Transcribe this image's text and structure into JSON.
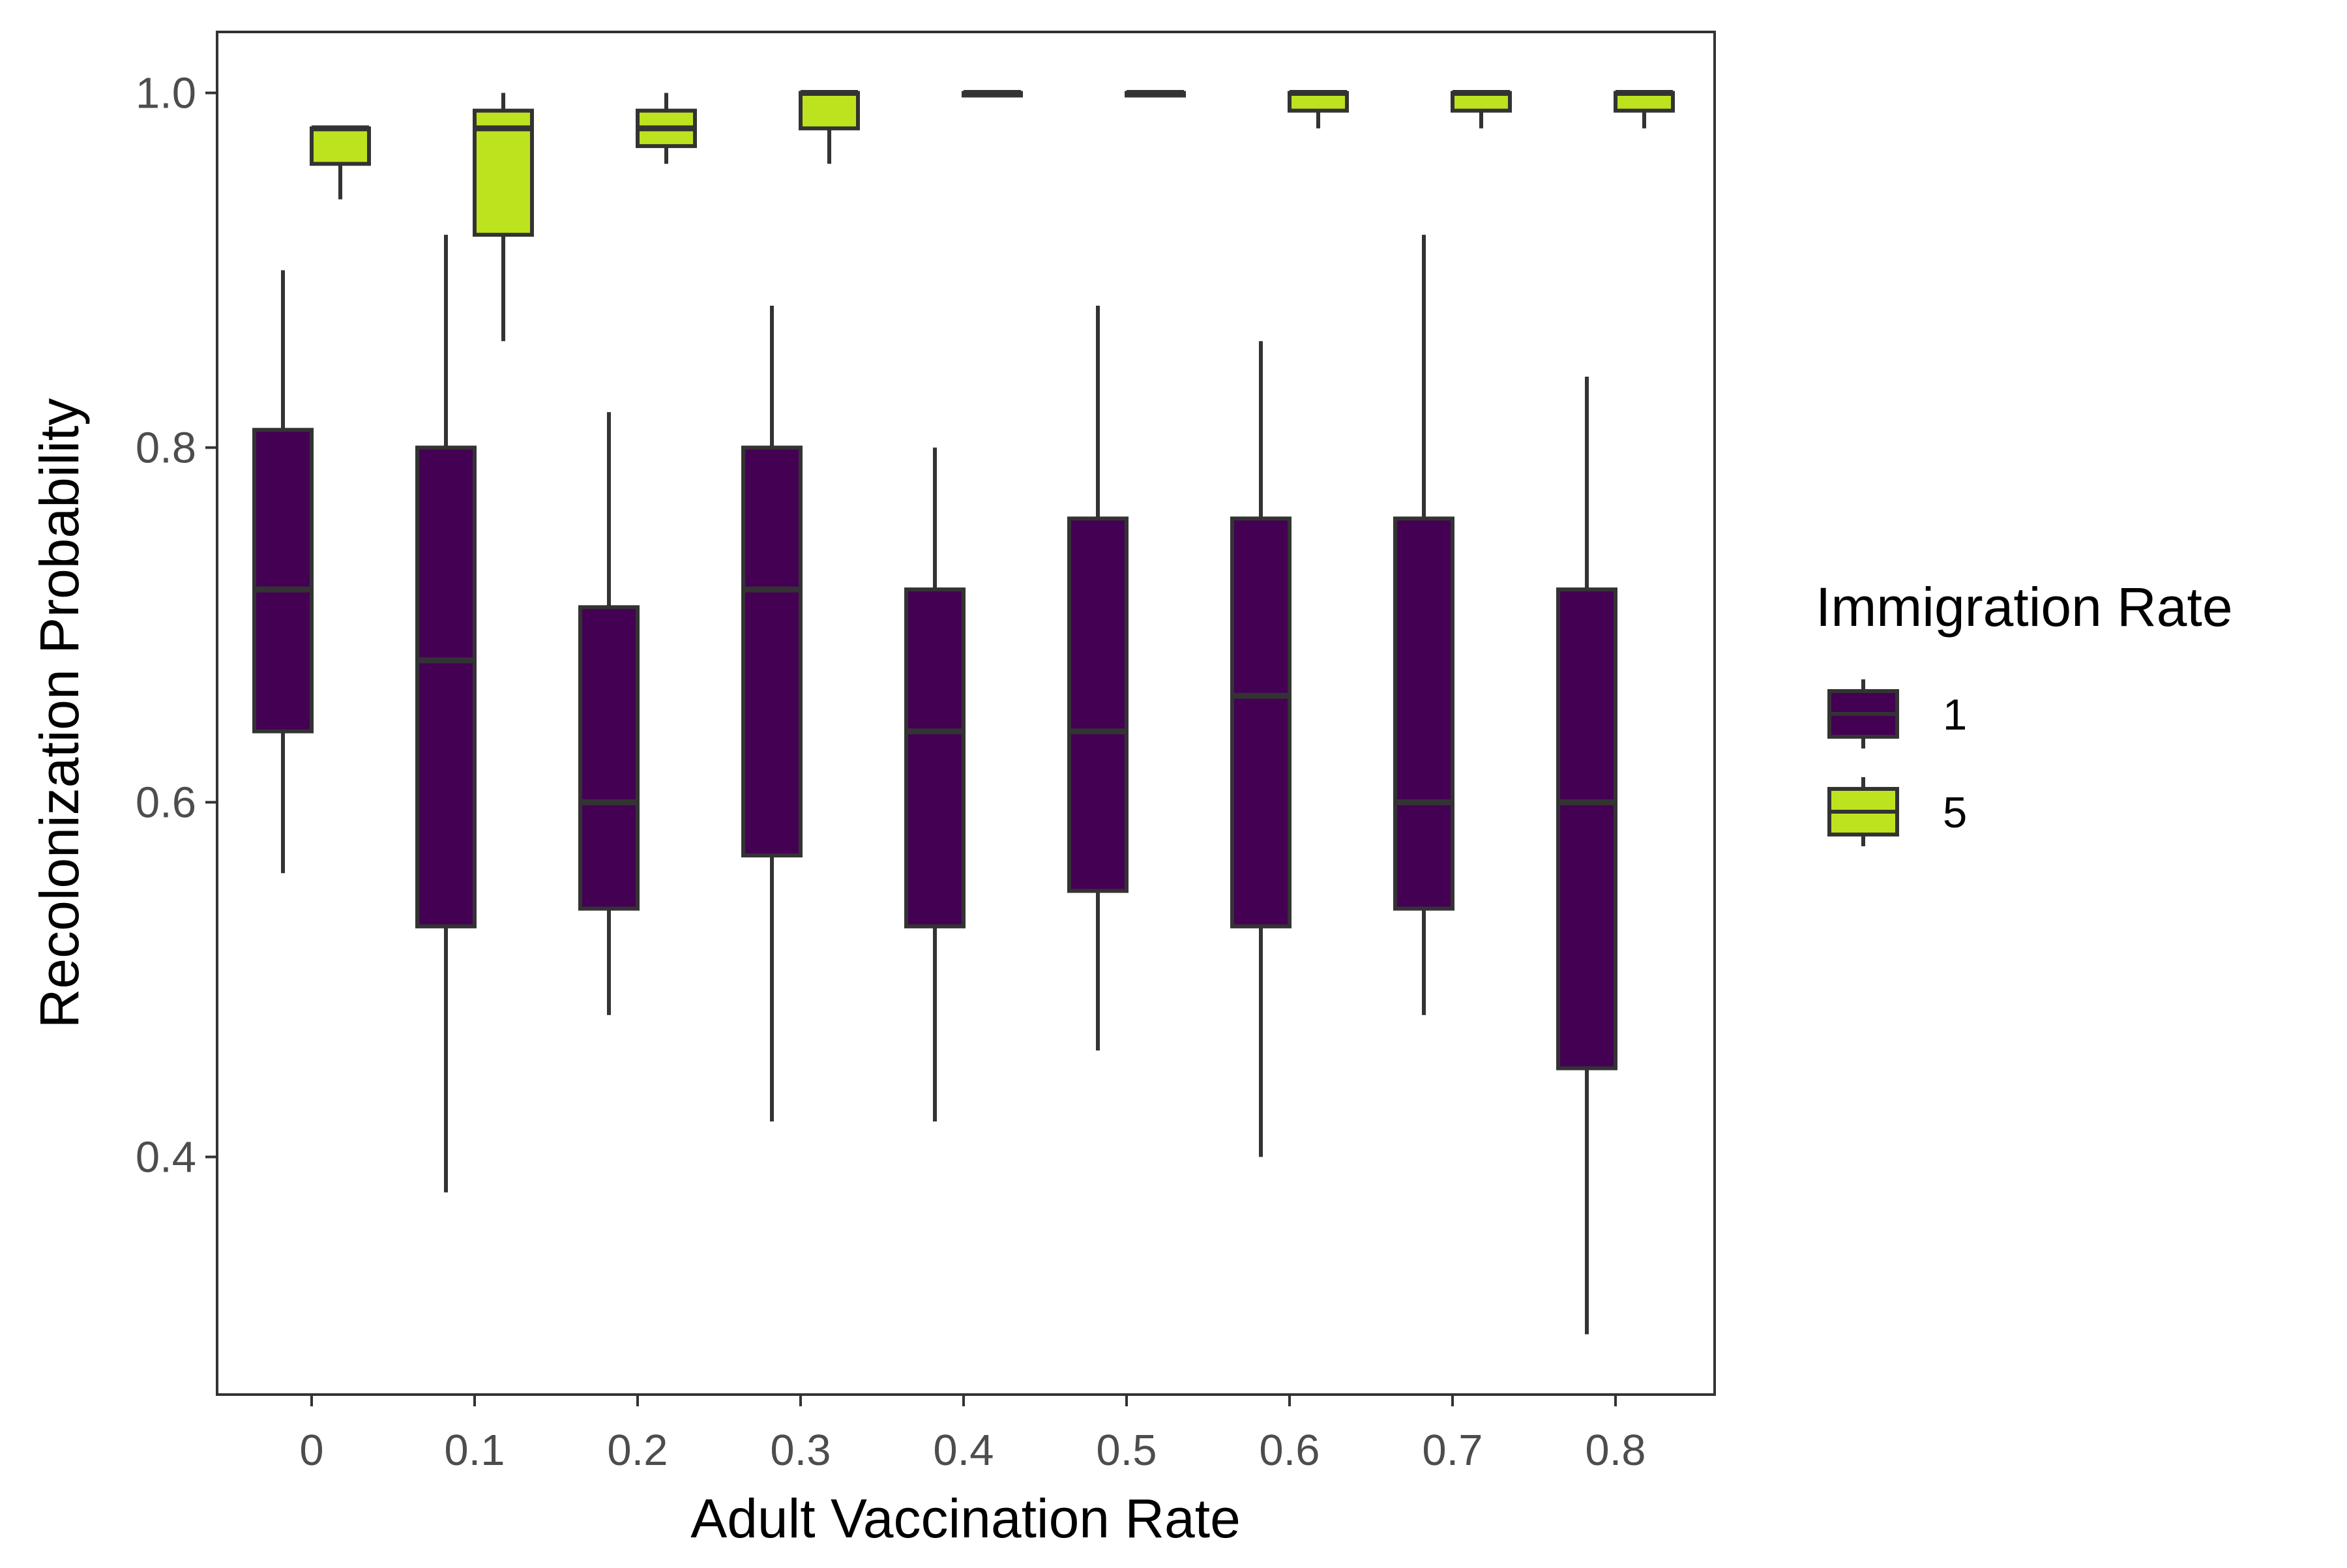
{
  "chart_data": {
    "type": "boxplot",
    "title": "",
    "xlabel": "Adult Vaccination Rate",
    "ylabel": "Recolonization Probability",
    "ylim": [
      0.27,
      1.035
    ],
    "yticks": [
      0.4,
      0.6,
      0.8,
      1.0
    ],
    "ytick_labels": [
      "0.4",
      "0.6",
      "0.8",
      "1.0"
    ],
    "categories": [
      "0",
      "0.1",
      "0.2",
      "0.3",
      "0.4",
      "0.5",
      "0.6",
      "0.7",
      "0.8"
    ],
    "grid": false,
    "legend": {
      "title": "Immigration Rate",
      "placement": "right"
    },
    "series": [
      {
        "name": "1",
        "color": "#440154",
        "boxes": [
          {
            "min": 0.56,
            "q1": 0.64,
            "median": 0.72,
            "q3": 0.81,
            "max": 0.9
          },
          {
            "min": 0.38,
            "q1": 0.53,
            "median": 0.68,
            "q3": 0.8,
            "max": 0.92
          },
          {
            "min": 0.48,
            "q1": 0.54,
            "median": 0.6,
            "q3": 0.71,
            "max": 0.82
          },
          {
            "min": 0.42,
            "q1": 0.57,
            "median": 0.72,
            "q3": 0.8,
            "max": 0.88
          },
          {
            "min": 0.42,
            "q1": 0.53,
            "median": 0.64,
            "q3": 0.72,
            "max": 0.8
          },
          {
            "min": 0.46,
            "q1": 0.55,
            "median": 0.64,
            "q3": 0.76,
            "max": 0.88
          },
          {
            "min": 0.4,
            "q1": 0.53,
            "median": 0.66,
            "q3": 0.76,
            "max": 0.86
          },
          {
            "min": 0.48,
            "q1": 0.54,
            "median": 0.6,
            "q3": 0.76,
            "max": 0.92
          },
          {
            "min": 0.3,
            "q1": 0.45,
            "median": 0.6,
            "q3": 0.72,
            "max": 0.84
          }
        ]
      },
      {
        "name": "5",
        "color": "#bde31f",
        "boxes": [
          {
            "min": 0.94,
            "q1": 0.96,
            "median": 0.98,
            "q3": 0.98,
            "max": 0.98
          },
          {
            "min": 0.86,
            "q1": 0.92,
            "median": 0.98,
            "q3": 0.99,
            "max": 1.0
          },
          {
            "min": 0.96,
            "q1": 0.97,
            "median": 0.98,
            "q3": 0.99,
            "max": 1.0
          },
          {
            "min": 0.96,
            "q1": 0.98,
            "median": 1.0,
            "q3": 1.0,
            "max": 1.0
          },
          {
            "min": 1.0,
            "q1": 1.0,
            "median": 1.0,
            "q3": 1.0,
            "max": 1.0
          },
          {
            "min": 1.0,
            "q1": 1.0,
            "median": 1.0,
            "q3": 1.0,
            "max": 1.0
          },
          {
            "min": 0.98,
            "q1": 0.99,
            "median": 1.0,
            "q3": 1.0,
            "max": 1.0
          },
          {
            "min": 0.98,
            "q1": 0.99,
            "median": 1.0,
            "q3": 1.0,
            "max": 1.0
          },
          {
            "min": 0.98,
            "q1": 0.99,
            "median": 1.0,
            "q3": 1.0,
            "max": 1.0
          }
        ]
      }
    ]
  }
}
